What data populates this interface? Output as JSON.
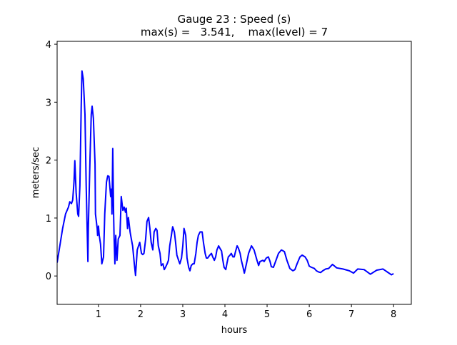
{
  "chart_data": {
    "type": "line",
    "title_line1": "Gauge 23 : Speed (s)",
    "title_line2": "max(s) =   3.541,    max(level) = 7",
    "xlabel": "hours",
    "ylabel": "meters/sec",
    "xlim": [
      0.02,
      8.42
    ],
    "ylim": [
      -0.49,
      4.05
    ],
    "xticks": [
      1,
      2,
      3,
      4,
      5,
      6,
      7,
      8
    ],
    "xtick_labels": [
      "1",
      "2",
      "3",
      "4",
      "5",
      "6",
      "7",
      "8"
    ],
    "yticks": [
      0,
      1,
      2,
      3,
      4
    ],
    "ytick_labels": [
      "0",
      "1",
      "2",
      "3",
      "4"
    ],
    "grid": false,
    "series": [
      {
        "name": "speed",
        "color": "#0000ff",
        "x": [
          0.02,
          0.085,
          0.15,
          0.22,
          0.29,
          0.32,
          0.36,
          0.39,
          0.42,
          0.44,
          0.47,
          0.51,
          0.53,
          0.56,
          0.59,
          0.61,
          0.64,
          0.68,
          0.71,
          0.75,
          0.76,
          0.8,
          0.83,
          0.85,
          0.88,
          0.92,
          0.93,
          0.97,
          0.98,
          1.0,
          1.02,
          1.05,
          1.08,
          1.12,
          1.15,
          1.19,
          1.22,
          1.25,
          1.29,
          1.31,
          1.32,
          1.34,
          1.36,
          1.37,
          1.39,
          1.41,
          1.42,
          1.44,
          1.47,
          1.51,
          1.54,
          1.58,
          1.61,
          1.64,
          1.66,
          1.69,
          1.71,
          1.75,
          1.78,
          1.81,
          1.85,
          1.88,
          1.92,
          1.95,
          1.98,
          2.02,
          2.05,
          2.08,
          2.12,
          2.15,
          2.19,
          2.22,
          2.25,
          2.29,
          2.32,
          2.36,
          2.39,
          2.42,
          2.46,
          2.49,
          2.53,
          2.56,
          2.59,
          2.63,
          2.66,
          2.69,
          2.73,
          2.76,
          2.8,
          2.83,
          2.86,
          2.9,
          2.93,
          2.97,
          3.0,
          3.03,
          3.07,
          3.1,
          3.14,
          3.17,
          3.2,
          3.24,
          3.27,
          3.31,
          3.34,
          3.37,
          3.41,
          3.46,
          3.49,
          3.53,
          3.56,
          3.59,
          3.64,
          3.68,
          3.71,
          3.75,
          3.78,
          3.81,
          3.85,
          3.88,
          3.92,
          3.95,
          3.98,
          4.02,
          4.05,
          4.08,
          4.12,
          4.15,
          4.19,
          4.22,
          4.25,
          4.29,
          4.32,
          4.36,
          4.39,
          4.42,
          4.46,
          4.51,
          4.56,
          4.63,
          4.69,
          4.76,
          4.8,
          4.83,
          4.9,
          4.93,
          4.98,
          5.03,
          5.07,
          5.1,
          5.15,
          5.2,
          5.27,
          5.34,
          5.41,
          5.47,
          5.54,
          5.61,
          5.66,
          5.71,
          5.78,
          5.83,
          5.9,
          5.95,
          6.0,
          6.05,
          6.12,
          6.17,
          6.22,
          6.27,
          6.32,
          6.39,
          6.46,
          6.55,
          6.65,
          6.8,
          6.95,
          7.05,
          7.15,
          7.3,
          7.45,
          7.6,
          7.75,
          7.85,
          7.95,
          8.0
        ],
        "y": [
          0.23,
          0.52,
          0.82,
          1.07,
          1.19,
          1.28,
          1.25,
          1.31,
          1.62,
          1.99,
          1.44,
          1.07,
          1.03,
          1.56,
          2.91,
          3.54,
          3.4,
          2.79,
          1.56,
          0.25,
          0.82,
          2.05,
          2.79,
          2.93,
          2.72,
          1.93,
          1.07,
          0.82,
          0.7,
          0.86,
          0.7,
          0.55,
          0.21,
          0.33,
          1.07,
          1.62,
          1.73,
          1.72,
          1.37,
          1.5,
          1.07,
          2.2,
          1.07,
          0.7,
          0.21,
          0.7,
          0.52,
          0.27,
          0.64,
          0.7,
          1.37,
          1.13,
          1.19,
          1.1,
          1.17,
          0.82,
          1.01,
          0.76,
          0.64,
          0.52,
          0.21,
          0.01,
          0.45,
          0.52,
          0.58,
          0.39,
          0.37,
          0.39,
          0.64,
          0.94,
          1.01,
          0.82,
          0.58,
          0.45,
          0.76,
          0.82,
          0.79,
          0.52,
          0.39,
          0.18,
          0.21,
          0.11,
          0.15,
          0.21,
          0.27,
          0.52,
          0.7,
          0.85,
          0.76,
          0.58,
          0.36,
          0.27,
          0.21,
          0.31,
          0.52,
          0.82,
          0.7,
          0.31,
          0.15,
          0.09,
          0.18,
          0.21,
          0.21,
          0.39,
          0.58,
          0.7,
          0.76,
          0.76,
          0.58,
          0.39,
          0.31,
          0.31,
          0.36,
          0.39,
          0.33,
          0.27,
          0.33,
          0.45,
          0.52,
          0.48,
          0.43,
          0.27,
          0.15,
          0.11,
          0.23,
          0.33,
          0.36,
          0.39,
          0.33,
          0.33,
          0.42,
          0.52,
          0.48,
          0.39,
          0.27,
          0.18,
          0.05,
          0.21,
          0.39,
          0.52,
          0.45,
          0.27,
          0.18,
          0.25,
          0.27,
          0.25,
          0.31,
          0.33,
          0.25,
          0.16,
          0.15,
          0.25,
          0.39,
          0.45,
          0.42,
          0.27,
          0.13,
          0.09,
          0.11,
          0.21,
          0.33,
          0.36,
          0.33,
          0.27,
          0.17,
          0.15,
          0.13,
          0.09,
          0.07,
          0.06,
          0.09,
          0.12,
          0.13,
          0.2,
          0.14,
          0.12,
          0.09,
          0.05,
          0.12,
          0.11,
          0.03,
          0.1,
          0.12,
          0.07,
          0.02,
          0.04
        ]
      }
    ]
  }
}
